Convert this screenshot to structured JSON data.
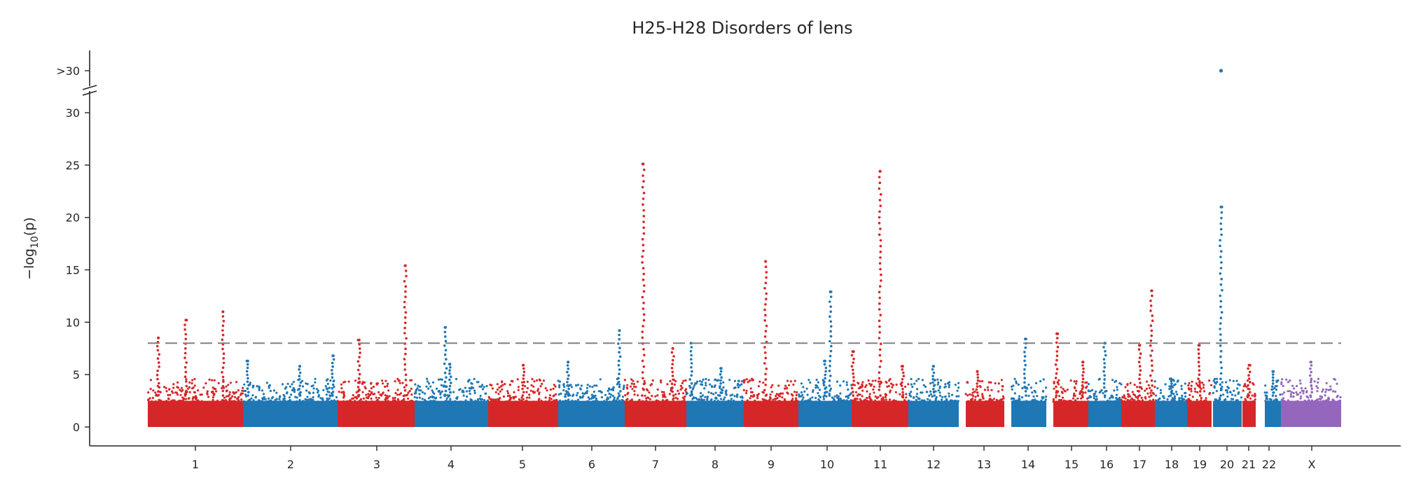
{
  "chart_data": {
    "type": "scatter",
    "subtype": "manhattan",
    "title": "H25-H28 Disorders of lens",
    "xlabel": "",
    "ylabel_text": "−log",
    "ylabel_sub": "10",
    "ylabel_tail": "(p)",
    "y_ticks": [
      "0",
      "5",
      "10",
      "15",
      "20",
      "25",
      "30"
    ],
    "y_break_label": ">30",
    "ylim": [
      0,
      30
    ],
    "significance_threshold": 8,
    "threshold_color": "#808080",
    "colors": {
      "odd": "#d62728",
      "even": "#1f77b4",
      "x": "#9467bd"
    },
    "chromosomes": [
      {
        "label": "1",
        "color": "odd",
        "peaks": [
          {
            "pos": 0.4,
            "y": 10.2
          },
          {
            "pos": 0.11,
            "y": 8.5
          },
          {
            "pos": 0.79,
            "y": 11.0
          }
        ]
      },
      {
        "label": "2",
        "color": "even",
        "peaks": [
          {
            "pos": 0.05,
            "y": 6.3
          },
          {
            "pos": 0.6,
            "y": 5.8
          },
          {
            "pos": 0.95,
            "y": 6.8
          }
        ]
      },
      {
        "label": "3",
        "color": "odd",
        "peaks": [
          {
            "pos": 0.28,
            "y": 8.3
          },
          {
            "pos": 0.88,
            "y": 15.4
          }
        ]
      },
      {
        "label": "4",
        "color": "even",
        "peaks": [
          {
            "pos": 0.42,
            "y": 9.5
          },
          {
            "pos": 0.48,
            "y": 6.0
          }
        ]
      },
      {
        "label": "5",
        "color": "odd",
        "peaks": [
          {
            "pos": 0.5,
            "y": 5.9
          }
        ]
      },
      {
        "label": "6",
        "color": "even",
        "peaks": [
          {
            "pos": 0.15,
            "y": 6.2
          },
          {
            "pos": 0.92,
            "y": 9.2
          }
        ]
      },
      {
        "label": "7",
        "color": "odd",
        "peaks": [
          {
            "pos": 0.3,
            "y": 25.1
          },
          {
            "pos": 0.78,
            "y": 7.5
          }
        ]
      },
      {
        "label": "8",
        "color": "even",
        "peaks": [
          {
            "pos": 0.08,
            "y": 8.0
          },
          {
            "pos": 0.6,
            "y": 5.6
          }
        ]
      },
      {
        "label": "9",
        "color": "odd",
        "peaks": [
          {
            "pos": 0.4,
            "y": 15.8
          }
        ]
      },
      {
        "label": "10",
        "color": "even",
        "peaks": [
          {
            "pos": 0.6,
            "y": 12.9
          },
          {
            "pos": 0.5,
            "y": 6.3
          }
        ]
      },
      {
        "label": "11",
        "color": "odd",
        "peaks": [
          {
            "pos": 0.5,
            "y": 24.4
          },
          {
            "pos": 0.02,
            "y": 7.2
          },
          {
            "pos": 0.9,
            "y": 5.8
          }
        ]
      },
      {
        "label": "12",
        "color": "even",
        "peaks": [
          {
            "pos": 0.5,
            "y": 5.8
          }
        ]
      },
      {
        "label": "13",
        "color": "odd",
        "peaks": [
          {
            "pos": 0.3,
            "y": 5.3
          }
        ]
      },
      {
        "label": "14",
        "color": "even",
        "peaks": [
          {
            "pos": 0.4,
            "y": 8.4
          }
        ]
      },
      {
        "label": "15",
        "color": "odd",
        "peaks": [
          {
            "pos": 0.1,
            "y": 8.9
          },
          {
            "pos": 0.85,
            "y": 6.2
          }
        ]
      },
      {
        "label": "16",
        "color": "even",
        "peaks": [
          {
            "pos": 0.5,
            "y": 8.0
          }
        ]
      },
      {
        "label": "17",
        "color": "odd",
        "peaks": [
          {
            "pos": 0.55,
            "y": 7.8
          },
          {
            "pos": 0.9,
            "y": 13.0
          }
        ]
      },
      {
        "label": "18",
        "color": "even",
        "peaks": [
          {
            "pos": 0.5,
            "y": 4.6
          }
        ]
      },
      {
        "label": "19",
        "color": "odd",
        "peaks": [
          {
            "pos": 0.5,
            "y": 7.8
          }
        ]
      },
      {
        "label": "20",
        "color": "even",
        "peaks": [
          {
            "pos": 0.28,
            "y": 21.0
          }
        ]
      },
      {
        "label": "21",
        "color": "odd",
        "peaks": [
          {
            "pos": 0.5,
            "y": 5.9
          }
        ]
      },
      {
        "label": "22",
        "color": "even",
        "peaks": [
          {
            "pos": 0.5,
            "y": 5.3
          }
        ]
      },
      {
        "label": "X",
        "color": "x",
        "peaks": [
          {
            "pos": 0.5,
            "y": 6.2
          }
        ]
      }
    ],
    "above_break_points": [
      {
        "chromosome": "20",
        "label": ">30"
      }
    ]
  }
}
